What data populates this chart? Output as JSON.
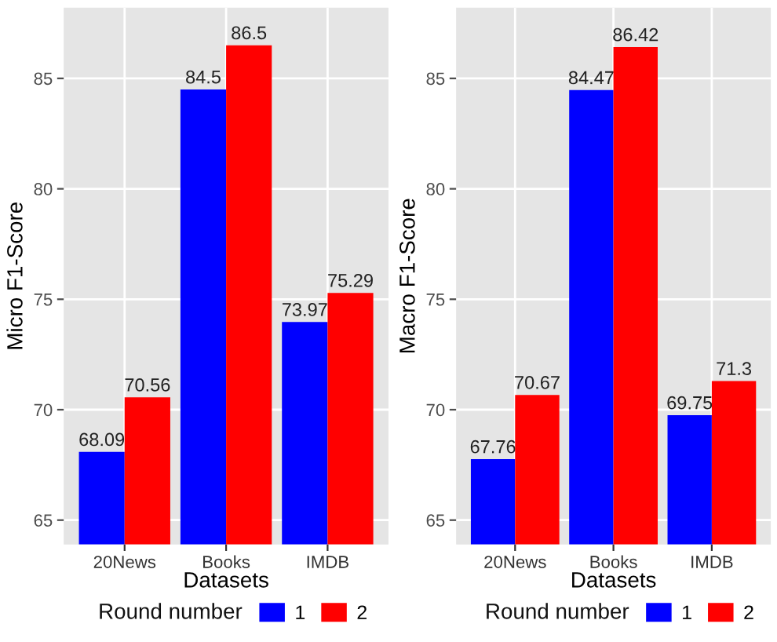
{
  "chart_data": [
    {
      "type": "bar",
      "xlabel": "Datasets",
      "ylabel": "Micro F1-Score",
      "categories": [
        "20News",
        "Books",
        "IMDB"
      ],
      "series": [
        {
          "name": "1",
          "color": "#0000ff",
          "values": [
            68.09,
            84.5,
            73.97
          ]
        },
        {
          "name": "2",
          "color": "#ff0000",
          "values": [
            70.56,
            86.5,
            75.29
          ]
        }
      ],
      "ylim": [
        63.9,
        88.2
      ],
      "yticks": [
        65,
        70,
        75,
        80,
        85
      ],
      "grid": true,
      "legend": "bottom",
      "legend_title": "Round number",
      "data_labels": true
    },
    {
      "type": "bar",
      "xlabel": "Datasets",
      "ylabel": "Macro F1-Score",
      "categories": [
        "20News",
        "Books",
        "IMDB"
      ],
      "series": [
        {
          "name": "1",
          "color": "#0000ff",
          "values": [
            67.76,
            84.47,
            69.75
          ]
        },
        {
          "name": "2",
          "color": "#ff0000",
          "values": [
            70.67,
            86.42,
            71.3
          ]
        }
      ],
      "ylim": [
        63.9,
        88.2
      ],
      "yticks": [
        65,
        70,
        75,
        80,
        85
      ],
      "grid": true,
      "legend": "bottom",
      "legend_title": "Round number",
      "data_labels": true
    }
  ]
}
